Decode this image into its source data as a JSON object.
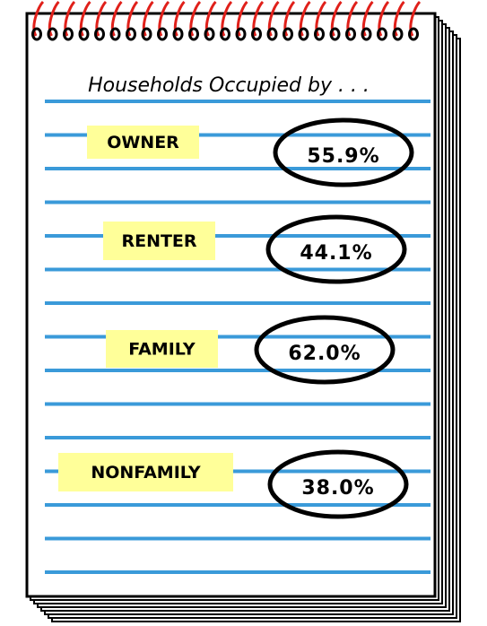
{
  "title": "Households Occupied by . . .",
  "items": [
    {
      "label": "OWNER",
      "value": "55.9%"
    },
    {
      "label": "RENTER",
      "value": "44.1%"
    },
    {
      "label": "FAMILY",
      "value": "62.0%"
    },
    {
      "label": "NONFAMILY",
      "value": "38.0%"
    }
  ]
}
